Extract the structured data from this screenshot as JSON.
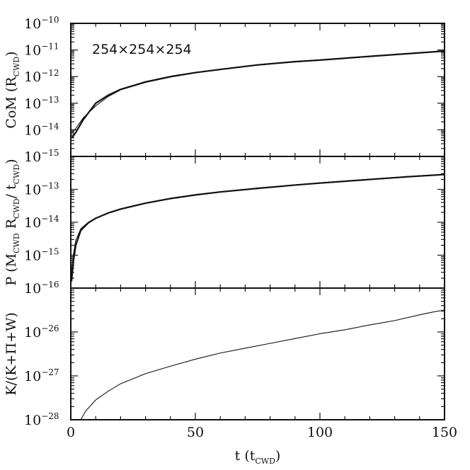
{
  "chart_data": [
    {
      "type": "line",
      "panel": "top",
      "ylabel": {
        "main": "CoM  (R",
        "sub": "CWD",
        "tail": ")"
      },
      "yscale": "log",
      "ylim": [
        1e-15,
        1e-10
      ],
      "xlim": [
        0,
        150
      ],
      "ytick_labels": [
        {
          "base": "10",
          "exp": "−10",
          "value": -10
        },
        {
          "base": "10",
          "exp": "−11",
          "value": -11
        },
        {
          "base": "10",
          "exp": "−12",
          "value": -12
        },
        {
          "base": "10",
          "exp": "−13",
          "value": -13
        },
        {
          "base": "10",
          "exp": "−14",
          "value": -14
        },
        {
          "base": "10",
          "exp": "−15",
          "value": -15
        }
      ],
      "annotation": "254×254×254",
      "series": [
        {
          "style": "thick",
          "points": [
            [
              0.5,
              -14.3
            ],
            [
              2,
              -14.1
            ],
            [
              5,
              -13.62
            ],
            [
              10,
              -13.0
            ],
            [
              15,
              -12.7
            ],
            [
              20,
              -12.48
            ],
            [
              30,
              -12.2
            ],
            [
              40,
              -12.0
            ],
            [
              50,
              -11.85
            ],
            [
              60,
              -11.73
            ],
            [
              75,
              -11.56
            ],
            [
              90,
              -11.44
            ],
            [
              100,
              -11.38
            ],
            [
              120,
              -11.24
            ],
            [
              135,
              -11.14
            ],
            [
              150,
              -11.04
            ]
          ]
        },
        {
          "style": "thin",
          "points": [
            [
              0.5,
              -14.1
            ],
            [
              2,
              -13.95
            ],
            [
              5,
              -13.55
            ],
            [
              10,
              -13.1
            ],
            [
              15,
              -12.75
            ],
            [
              20,
              -12.5
            ],
            [
              30,
              -12.22
            ],
            [
              40,
              -12.02
            ],
            [
              50,
              -11.86
            ],
            [
              60,
              -11.74
            ],
            [
              75,
              -11.57
            ],
            [
              90,
              -11.45
            ],
            [
              100,
              -11.39
            ],
            [
              120,
              -11.25
            ],
            [
              135,
              -11.15
            ],
            [
              150,
              -11.05
            ]
          ]
        }
      ]
    },
    {
      "type": "line",
      "panel": "middle",
      "ylabel": {
        "main": "P  (M",
        "sub1": "CWD",
        "mid": " R",
        "sub2": "CWD",
        "tail": "/ t",
        "sub3": "CWD",
        "end": ")"
      },
      "yscale": "log",
      "ylim": [
        1e-16,
        1e-12
      ],
      "xlim": [
        0,
        150
      ],
      "ytick_labels": [
        {
          "base": "10",
          "exp": "−13",
          "value": -13
        },
        {
          "base": "10",
          "exp": "−14",
          "value": -14
        },
        {
          "base": "10",
          "exp": "−15",
          "value": -15
        },
        {
          "base": "10",
          "exp": "−16",
          "value": -16
        }
      ],
      "series": [
        {
          "style": "thick",
          "points": [
            [
              0.3,
              -15.8
            ],
            [
              1,
              -15.2
            ],
            [
              2,
              -14.7
            ],
            [
              4,
              -14.25
            ],
            [
              7,
              -14.02
            ],
            [
              10,
              -13.88
            ],
            [
              15,
              -13.72
            ],
            [
              20,
              -13.6
            ],
            [
              30,
              -13.42
            ],
            [
              40,
              -13.28
            ],
            [
              50,
              -13.17
            ],
            [
              60,
              -13.08
            ],
            [
              75,
              -12.97
            ],
            [
              90,
              -12.87
            ],
            [
              100,
              -12.81
            ],
            [
              120,
              -12.7
            ],
            [
              135,
              -12.62
            ],
            [
              150,
              -12.55
            ]
          ]
        },
        {
          "style": "thin",
          "points": [
            [
              0.3,
              -15.5
            ],
            [
              1,
              -15.0
            ],
            [
              2,
              -14.55
            ],
            [
              4,
              -14.2
            ],
            [
              7,
              -14.0
            ],
            [
              10,
              -13.87
            ],
            [
              15,
              -13.71
            ],
            [
              20,
              -13.59
            ],
            [
              30,
              -13.41
            ],
            [
              40,
              -13.27
            ],
            [
              50,
              -13.16
            ],
            [
              60,
              -13.07
            ],
            [
              75,
              -12.96
            ],
            [
              90,
              -12.86
            ],
            [
              100,
              -12.8
            ],
            [
              120,
              -12.69
            ],
            [
              135,
              -12.61
            ],
            [
              150,
              -12.54
            ]
          ]
        }
      ]
    },
    {
      "type": "line",
      "panel": "bottom",
      "ylabel": "K/(K+Π+W)",
      "yscale": "log",
      "ylim": [
        1e-28,
        1e-25
      ],
      "xlim": [
        0,
        150
      ],
      "ytick_labels": [
        {
          "base": "10",
          "exp": "−26",
          "value": -26
        },
        {
          "base": "10",
          "exp": "−27",
          "value": -27
        },
        {
          "base": "10",
          "exp": "−28",
          "value": -28
        }
      ],
      "xtick_labels": [
        "0",
        "50",
        "100",
        "150"
      ],
      "xticks": [
        0,
        50,
        100,
        150
      ],
      "xlabel": {
        "main": "t  (t",
        "sub": "CWD",
        "tail": ")"
      },
      "series": [
        {
          "style": "thin",
          "points": [
            [
              4,
              -28.0
            ],
            [
              6,
              -27.8
            ],
            [
              10,
              -27.55
            ],
            [
              15,
              -27.35
            ],
            [
              20,
              -27.18
            ],
            [
              30,
              -26.95
            ],
            [
              40,
              -26.78
            ],
            [
              50,
              -26.62
            ],
            [
              60,
              -26.48
            ],
            [
              70,
              -26.37
            ],
            [
              80,
              -26.26
            ],
            [
              90,
              -26.15
            ],
            [
              100,
              -26.04
            ],
            [
              110,
              -25.95
            ],
            [
              120,
              -25.84
            ],
            [
              130,
              -25.74
            ],
            [
              140,
              -25.61
            ],
            [
              145,
              -25.55
            ],
            [
              150,
              -25.5
            ]
          ]
        }
      ]
    }
  ]
}
